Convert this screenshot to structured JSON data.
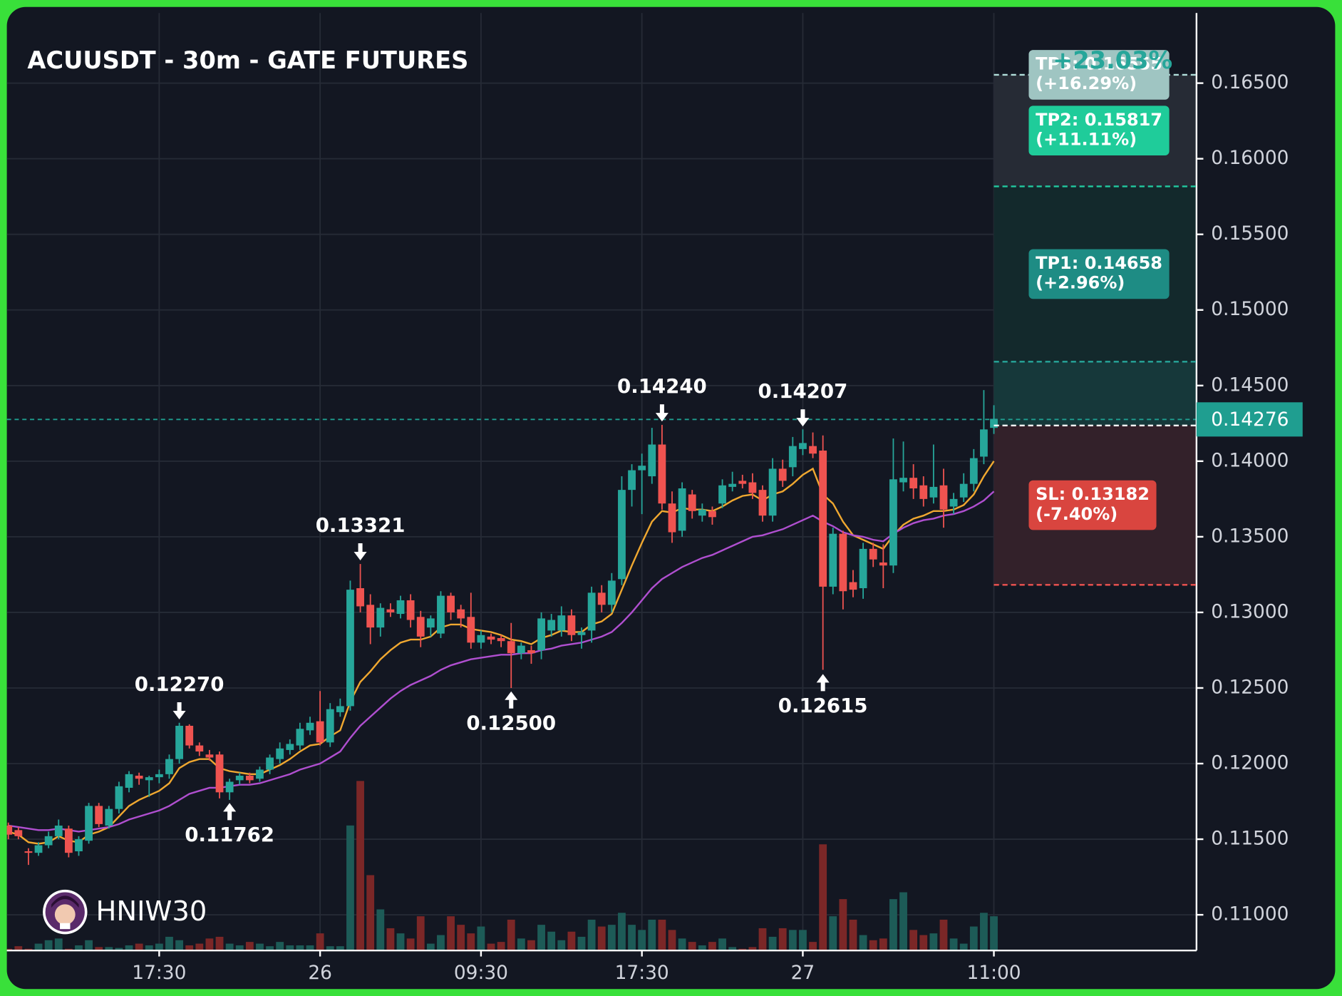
{
  "chart_data": {
    "type": "candlestick",
    "title": "ACUUSDT - 30m - GATE FUTURES",
    "watermark": "HNIW30",
    "total_gain": "+23.03%",
    "categories": [
      null,
      null,
      null,
      null,
      null,
      null,
      null,
      null,
      null,
      null,
      null,
      null,
      null,
      null,
      null,
      "17:30",
      null,
      null,
      null,
      null,
      null,
      null,
      null,
      null,
      null,
      null,
      null,
      null,
      null,
      null,
      null,
      "26",
      null,
      null,
      null,
      null,
      null,
      null,
      null,
      null,
      null,
      null,
      null,
      null,
      null,
      null,
      null,
      "09:30",
      null,
      null,
      null,
      null,
      null,
      null,
      null,
      null,
      null,
      null,
      null,
      null,
      null,
      null,
      null,
      "17:30",
      null,
      null,
      null,
      null,
      null,
      null,
      null,
      null,
      null,
      null,
      null,
      null,
      null,
      null,
      null,
      "27",
      null,
      null,
      null,
      null,
      null,
      null,
      null,
      null,
      null,
      null,
      null,
      null,
      null,
      null,
      null,
      null,
      null,
      null,
      "11:00"
    ],
    "open": [
      0.1159,
      0.1156,
      0.1142,
      0.1141,
      0.1146,
      0.1152,
      0.1157,
      0.1142,
      0.1149,
      0.1172,
      0.1159,
      0.117,
      0.1184,
      0.1192,
      0.1189,
      0.1191,
      0.1193,
      0.1203,
      0.1225,
      0.1212,
      0.1206,
      0.1206,
      0.1181,
      0.1189,
      0.1192,
      0.119,
      0.1196,
      0.1203,
      0.1209,
      0.1212,
      0.1222,
      0.1228,
      0.1214,
      0.1234,
      0.1238,
      0.1316,
      0.1305,
      0.129,
      0.1302,
      0.1299,
      0.1308,
      0.1297,
      0.129,
      0.1286,
      0.1311,
      0.1302,
      0.1297,
      0.128,
      0.1284,
      0.1283,
      0.1281,
      0.1273,
      0.1275,
      0.1275,
      0.1288,
      0.1288,
      0.1298,
      0.1285,
      0.1288,
      0.1313,
      0.1305,
      0.1322,
      0.1381,
      0.1394,
      0.139,
      0.1411,
      0.1372,
      0.1354,
      0.1378,
      0.1364,
      0.1367,
      0.1372,
      0.1383,
      0.1387,
      0.1386,
      0.1381,
      0.1364,
      0.1395,
      0.1396,
      0.1408,
      0.141,
      0.1407,
      0.1317,
      0.1352,
      0.132,
      0.1316,
      0.1342,
      0.1333,
      0.1331,
      0.1386,
      0.1389,
      0.1384,
      0.1376,
      0.1384,
      0.137,
      0.1376,
      0.1385,
      0.1403,
      0.1422
    ],
    "high": [
      0.1161,
      0.1158,
      0.1144,
      0.1148,
      0.1155,
      0.1163,
      0.1159,
      0.1152,
      0.1174,
      0.1174,
      0.1172,
      0.1188,
      0.1195,
      0.1194,
      0.1192,
      0.1196,
      0.1206,
      0.1227,
      0.1226,
      0.1214,
      0.1209,
      0.1208,
      0.119,
      0.1194,
      0.1194,
      0.1198,
      0.1206,
      0.1214,
      0.1216,
      0.1227,
      0.1231,
      0.1248,
      0.124,
      0.1243,
      0.1321,
      0.1332,
      0.1312,
      0.1306,
      0.1306,
      0.1311,
      0.1312,
      0.1301,
      0.1298,
      0.1314,
      0.1313,
      0.1305,
      0.1313,
      0.1288,
      0.1286,
      0.1285,
      0.1293,
      0.128,
      0.1278,
      0.13,
      0.1299,
      0.1304,
      0.1302,
      0.129,
      0.1317,
      0.1318,
      0.1326,
      0.139,
      0.1398,
      0.1405,
      0.1422,
      0.1424,
      0.138,
      0.1386,
      0.1381,
      0.1372,
      0.137,
      0.1388,
      0.1393,
      0.1391,
      0.1392,
      0.1384,
      0.1402,
      0.1401,
      0.1416,
      0.1421,
      0.1419,
      0.1417,
      0.1356,
      0.1354,
      0.1328,
      0.1346,
      0.1346,
      0.1345,
      0.1415,
      0.1413,
      0.1398,
      0.139,
      0.1411,
      0.1395,
      0.1379,
      0.1392,
      0.1408,
      0.1447,
      0.1437
    ],
    "low": [
      0.115,
      0.115,
      0.1133,
      0.1139,
      0.1144,
      0.115,
      0.1138,
      0.1139,
      0.1147,
      0.1158,
      0.1157,
      0.1167,
      0.1181,
      0.1186,
      0.1178,
      0.1187,
      0.119,
      0.12,
      0.121,
      0.1205,
      0.1202,
      0.1177,
      0.1176,
      0.1186,
      0.1187,
      0.1188,
      0.1193,
      0.12,
      0.1206,
      0.1209,
      0.1219,
      0.1212,
      0.1211,
      0.1231,
      0.1235,
      0.13,
      0.1279,
      0.1284,
      0.1297,
      0.1296,
      0.129,
      0.1277,
      0.1284,
      0.1283,
      0.1295,
      0.129,
      0.1276,
      0.1276,
      0.1279,
      0.1277,
      0.125,
      0.1269,
      0.1266,
      0.1269,
      0.1284,
      0.1284,
      0.1281,
      0.1276,
      0.128,
      0.13,
      0.13,
      0.1318,
      0.137,
      0.1365,
      0.1385,
      0.1368,
      0.1346,
      0.135,
      0.1362,
      0.136,
      0.1358,
      0.1369,
      0.138,
      0.1382,
      0.1375,
      0.136,
      0.136,
      0.1383,
      0.139,
      0.1404,
      0.1402,
      0.1262,
      0.1312,
      0.1302,
      0.131,
      0.1309,
      0.133,
      0.1316,
      0.1326,
      0.138,
      0.1375,
      0.137,
      0.1372,
      0.1356,
      0.1365,
      0.1373,
      0.138,
      0.1398,
      0.1418
    ],
    "close": [
      0.1153,
      0.1152,
      0.1141,
      0.1146,
      0.1152,
      0.1159,
      0.1141,
      0.115,
      0.1172,
      0.116,
      0.117,
      0.1185,
      0.1193,
      0.119,
      0.1191,
      0.1193,
      0.1203,
      0.1225,
      0.1212,
      0.1208,
      0.1204,
      0.1181,
      0.1188,
      0.1192,
      0.1189,
      0.1196,
      0.1204,
      0.121,
      0.1213,
      0.1223,
      0.1227,
      0.1214,
      0.1236,
      0.1238,
      0.1315,
      0.1304,
      0.129,
      0.1303,
      0.13,
      0.1308,
      0.1295,
      0.1284,
      0.1296,
      0.1311,
      0.13,
      0.1296,
      0.128,
      0.1285,
      0.1282,
      0.1281,
      0.1273,
      0.1278,
      0.1273,
      0.1296,
      0.1295,
      0.1298,
      0.1285,
      0.1287,
      0.1313,
      0.1305,
      0.1321,
      0.1381,
      0.1394,
      0.1397,
      0.1411,
      0.1372,
      0.1353,
      0.1382,
      0.1367,
      0.1368,
      0.1363,
      0.1384,
      0.1385,
      0.1385,
      0.1379,
      0.1364,
      0.1395,
      0.1387,
      0.141,
      0.1412,
      0.1405,
      0.1317,
      0.1352,
      0.1314,
      0.1315,
      0.1342,
      0.1335,
      0.1331,
      0.1388,
      0.1389,
      0.1382,
      0.1375,
      0.1383,
      0.1368,
      0.1375,
      0.1385,
      0.1402,
      0.1421,
      0.1428
    ],
    "volume": [
      2,
      5,
      2,
      8,
      12,
      14,
      2,
      6,
      12,
      4,
      4,
      3,
      6,
      8,
      6,
      8,
      16,
      12,
      6,
      8,
      14,
      16,
      8,
      6,
      10,
      8,
      5,
      10,
      6,
      6,
      6,
      20,
      5,
      5,
      146,
      198,
      88,
      48,
      26,
      20,
      14,
      40,
      8,
      18,
      40,
      30,
      20,
      28,
      8,
      10,
      36,
      14,
      12,
      30,
      22,
      12,
      22,
      16,
      36,
      28,
      30,
      44,
      30,
      24,
      36,
      36,
      24,
      14,
      10,
      6,
      10,
      14,
      4,
      2,
      4,
      26,
      16,
      26,
      24,
      24,
      10,
      124,
      40,
      60,
      36,
      18,
      12,
      14,
      60,
      68,
      24,
      18,
      20,
      36,
      14,
      8,
      28,
      44,
      40
    ],
    "up_color": "#26a69a",
    "down_color": "#ef5350",
    "volume_up_color": "#1d5b57",
    "volume_down_color": "#7b2727",
    "lines": [
      {
        "color": "#f0a830",
        "values": [
          0.1155,
          0.1153,
          0.1148,
          0.1147,
          0.1148,
          0.1152,
          0.1149,
          0.1148,
          0.1153,
          0.1155,
          0.1158,
          0.1165,
          0.1172,
          0.1176,
          0.1179,
          0.1182,
          0.1187,
          0.1197,
          0.1201,
          0.1203,
          0.1203,
          0.1197,
          0.1195,
          0.1194,
          0.1193,
          0.1193,
          0.1196,
          0.1199,
          0.1203,
          0.1208,
          0.1212,
          0.1213,
          0.1218,
          0.1222,
          0.1241,
          0.1254,
          0.1261,
          0.1269,
          0.1275,
          0.128,
          0.1282,
          0.1282,
          0.1284,
          0.129,
          0.1292,
          0.1292,
          0.1289,
          0.1288,
          0.1287,
          0.1285,
          0.1282,
          0.1281,
          0.1279,
          0.1283,
          0.1285,
          0.1288,
          0.1287,
          0.1287,
          0.1292,
          0.1294,
          0.1299,
          0.1315,
          0.1331,
          0.1346,
          0.136,
          0.1367,
          0.1366,
          0.1369,
          0.1368,
          0.1368,
          0.1367,
          0.137,
          0.1374,
          0.1377,
          0.1378,
          0.1374,
          0.1378,
          0.138,
          0.1385,
          0.1391,
          0.1395,
          0.1378,
          0.1372,
          0.136,
          0.1351,
          0.1348,
          0.1345,
          0.1342,
          0.1351,
          0.1358,
          0.1362,
          0.1364,
          0.1367,
          0.1367,
          0.1368,
          0.1371,
          0.1378,
          0.139,
          0.14
        ]
      },
      {
        "color": "#b04fd0",
        "values": [
          0.1159,
          0.1158,
          0.1157,
          0.1156,
          0.1156,
          0.1157,
          0.1156,
          0.1155,
          0.1156,
          0.1157,
          0.1158,
          0.116,
          0.1163,
          0.1165,
          0.1167,
          0.1169,
          0.1172,
          0.1176,
          0.118,
          0.1182,
          0.1184,
          0.1184,
          0.1185,
          0.1186,
          0.1186,
          0.1187,
          0.1189,
          0.1191,
          0.1193,
          0.1196,
          0.1198,
          0.12,
          0.1204,
          0.1208,
          0.1217,
          0.1225,
          0.1231,
          0.1237,
          0.1243,
          0.1248,
          0.1252,
          0.1255,
          0.1258,
          0.1262,
          0.1265,
          0.1267,
          0.1269,
          0.127,
          0.1271,
          0.1272,
          0.1272,
          0.1273,
          0.1273,
          0.1275,
          0.1276,
          0.1278,
          0.1279,
          0.128,
          0.1282,
          0.1284,
          0.1287,
          0.1293,
          0.13,
          0.1308,
          0.1316,
          0.1322,
          0.1326,
          0.133,
          0.1333,
          0.1336,
          0.1338,
          0.1341,
          0.1344,
          0.1347,
          0.135,
          0.1351,
          0.1353,
          0.1355,
          0.1358,
          0.1361,
          0.1364,
          0.136,
          0.1357,
          0.1353,
          0.1351,
          0.135,
          0.1348,
          0.1347,
          0.1352,
          0.1356,
          0.1359,
          0.1361,
          0.1362,
          0.1364,
          0.1365,
          0.1367,
          0.137,
          0.1374,
          0.138
        ]
      }
    ],
    "last_price": {
      "value": 0.14276,
      "label": "0.14276"
    },
    "last_price_color": "#1f9e90",
    "annotations": [
      {
        "x": 17,
        "value": 0.1227,
        "label": "0.12270",
        "kind": "high"
      },
      {
        "x": 22,
        "value": 0.11762,
        "label": "0.11762",
        "kind": "low"
      },
      {
        "x": 35,
        "value": 0.13321,
        "label": "0.13321",
        "kind": "high"
      },
      {
        "x": 50,
        "value": 0.125,
        "label": "0.12500",
        "kind": "low"
      },
      {
        "x": 65,
        "value": 0.1424,
        "label": "0.14240",
        "kind": "high"
      },
      {
        "x": 79,
        "value": 0.14207,
        "label": "0.14207",
        "kind": "high"
      },
      {
        "x": 81,
        "value": 0.12615,
        "label": "0.12615",
        "kind": "low"
      }
    ],
    "levels": [
      {
        "price": 0.16555,
        "label": [
          "TP3: 0.16555",
          "(+16.29%)"
        ],
        "line_color": "#b2dfdb",
        "box_color": "#9fc5c2",
        "zone_color": "#262b35"
      },
      {
        "price": 0.15817,
        "label": [
          "TP2: 0.15817",
          "(+11.11%)"
        ],
        "line_color": "#22c9a0",
        "box_color": "#1fcc9a",
        "zone_color": "#13292c"
      },
      {
        "price": 0.14658,
        "label": [
          "TP1: 0.14658",
          "(+2.96%)"
        ],
        "line_color": "#26a69a",
        "box_color": "#1e8c84",
        "zone_color": "#16383a"
      },
      {
        "price": 0.14236,
        "line_color": "#ffffff",
        "zone_color": "#33212a"
      },
      {
        "price": 0.13182,
        "label": [
          "SL: 0.13182",
          "(-7.40%)"
        ],
        "line_color": "#ef5350",
        "box_color": "#d9453f"
      }
    ],
    "ylim": [
      0.10764,
      0.16964
    ],
    "yticks": [
      {
        "value": 0.11,
        "label": "0.11000"
      },
      {
        "value": 0.115,
        "label": "0.11500"
      },
      {
        "value": 0.12,
        "label": "0.12000"
      },
      {
        "value": 0.125,
        "label": "0.12500"
      },
      {
        "value": 0.13,
        "label": "0.13000"
      },
      {
        "value": 0.135,
        "label": "0.13500"
      },
      {
        "value": 0.14,
        "label": "0.14000"
      },
      {
        "value": 0.145,
        "label": "0.14500"
      },
      {
        "value": 0.15,
        "label": "0.15000"
      },
      {
        "value": 0.155,
        "label": "0.15500"
      },
      {
        "value": 0.16,
        "label": "0.16000"
      },
      {
        "value": 0.165,
        "label": "0.16500"
      }
    ],
    "grid": true
  }
}
